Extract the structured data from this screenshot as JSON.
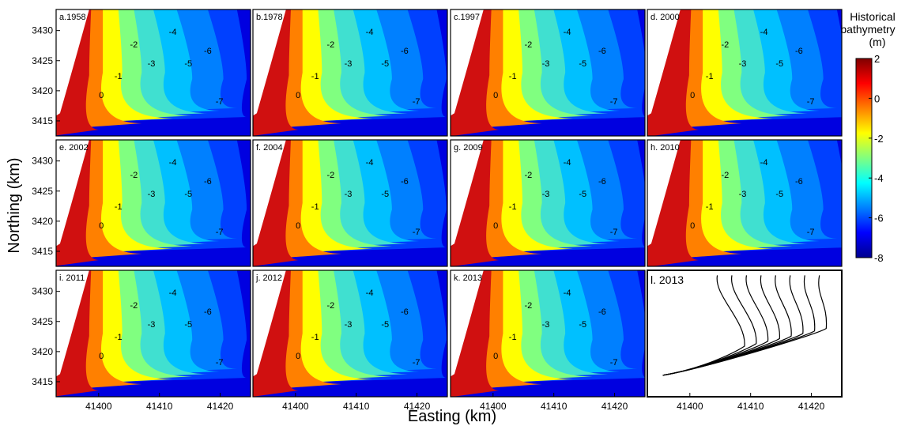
{
  "figure": {
    "xlabel": "Easting (km)",
    "ylabel": "Northing (km)"
  },
  "chart_data": [
    {
      "type": "heatmap",
      "title": "a.1958"
    },
    {
      "type": "heatmap",
      "title": "b.1978"
    },
    {
      "type": "heatmap",
      "title": "c.1997"
    },
    {
      "type": "heatmap",
      "title": "d. 2000"
    },
    {
      "type": "heatmap",
      "title": "e. 2002"
    },
    {
      "type": "heatmap",
      "title": "f. 2004"
    },
    {
      "type": "heatmap",
      "title": "g. 2009"
    },
    {
      "type": "heatmap",
      "title": "h. 2010"
    },
    {
      "type": "heatmap",
      "title": "i. 2011"
    },
    {
      "type": "heatmap",
      "title": "j. 2012"
    },
    {
      "type": "heatmap",
      "title": "k. 2013"
    },
    {
      "type": "line",
      "title": "l. 2013"
    }
  ],
  "axes": {
    "xticks": [
      41400,
      41410,
      41420
    ],
    "xlim": [
      41393,
      41425
    ],
    "yticks": [
      3415,
      3420,
      3425,
      3430
    ],
    "ylim": [
      3412.5,
      3433.5
    ]
  },
  "colorbar": {
    "title_lines": [
      "Historical",
      "bathymetry",
      "(m)"
    ],
    "ticks": [
      2,
      0,
      -2,
      -4,
      -6,
      -8
    ],
    "range": [
      -8,
      2
    ],
    "colors": [
      "#00008f",
      "#0000ff",
      "#0080ff",
      "#00ffff",
      "#80ff80",
      "#ffff00",
      "#ff8000",
      "#ff0000",
      "#800000"
    ]
  },
  "contour_labels": [
    "-1",
    "-2",
    "-3",
    "-4",
    "-5",
    "-6",
    "-7",
    "0"
  ]
}
